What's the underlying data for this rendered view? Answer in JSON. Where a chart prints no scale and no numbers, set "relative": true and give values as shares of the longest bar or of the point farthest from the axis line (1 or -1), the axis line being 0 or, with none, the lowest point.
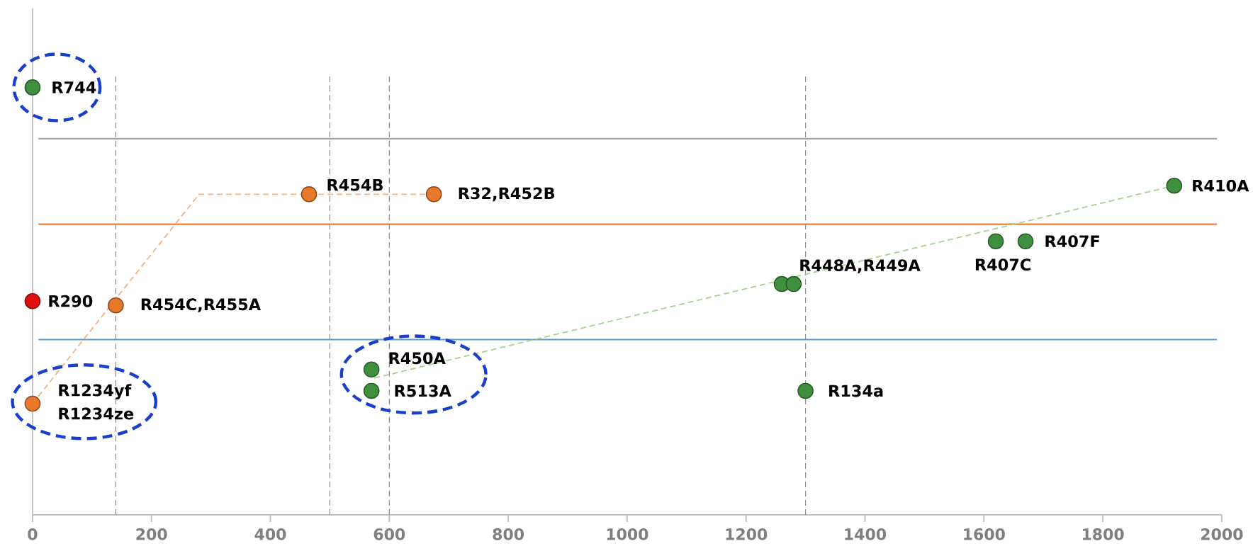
{
  "chart_data": {
    "type": "scatter",
    "relative": true,
    "xlim": [
      0,
      2000
    ],
    "xticks": [
      0,
      200,
      400,
      600,
      800,
      1000,
      1200,
      1400,
      1600,
      1800,
      2000
    ],
    "tick_labels": "x",
    "marker": "circle",
    "series": [
      {
        "color": "#3f8f3f",
        "x": [
          0,
          570,
          570,
          1260,
          1280,
          1300,
          1620,
          1670,
          1920
        ],
        "values": [
          1.0,
          0.34,
          0.29,
          0.54,
          0.54,
          0.29,
          0.64,
          0.64,
          0.77
        ]
      },
      {
        "color": "#e8782a",
        "x": [
          0,
          140,
          465,
          675
        ],
        "values": [
          0.26,
          0.49,
          0.75,
          0.75
        ]
      },
      {
        "color": "#e01010",
        "x": [
          0
        ],
        "values": [
          0.5
        ]
      },
      {
        "type": "line",
        "color": "#f4b183",
        "line_style": "dashed",
        "marker": "none",
        "x": [
          0,
          280,
          675
        ],
        "values": [
          0.26,
          0.75,
          0.75
        ]
      },
      {
        "type": "line",
        "color": "#a9d18e",
        "line_style": "dashed",
        "marker": "none",
        "x": [
          575,
          1920
        ],
        "values": [
          0.32,
          0.77
        ]
      }
    ],
    "ref_lines": [
      {
        "axis": "y",
        "value": 0.88,
        "color": "#a6a6a6",
        "line_style": "solid"
      },
      {
        "axis": "y",
        "value": 0.68,
        "color": "#ed7d31",
        "line_style": "solid"
      },
      {
        "axis": "y",
        "value": 0.41,
        "color": "#5b9bd5",
        "line_style": "solid"
      },
      {
        "axis": "x",
        "value": 140,
        "color": "#8c8c8c",
        "line_style": "dashed"
      },
      {
        "axis": "x",
        "value": 500,
        "color": "#8c8c8c",
        "line_style": "dashed"
      },
      {
        "axis": "x",
        "value": 600,
        "color": "#8c8c8c",
        "line_style": "dashed"
      },
      {
        "axis": "x",
        "value": 1300,
        "color": "#8c8c8c",
        "line_style": "dashed"
      }
    ],
    "annotations": [
      {
        "text": "R744",
        "x": 0,
        "y": 1.0
      },
      {
        "text": "R454B",
        "x": 465,
        "y": 0.75
      },
      {
        "text": "R32,R452B",
        "x": 675,
        "y": 0.75
      },
      {
        "text": "R290",
        "x": 0,
        "y": 0.5
      },
      {
        "text": "R454C,R455A",
        "x": 140,
        "y": 0.49
      },
      {
        "text": "R448A,R449A",
        "x": 1280,
        "y": 0.54
      },
      {
        "text": "R407C",
        "x": 1620,
        "y": 0.64
      },
      {
        "text": "R407F",
        "x": 1670,
        "y": 0.64
      },
      {
        "text": "R410A",
        "x": 1920,
        "y": 0.77
      },
      {
        "text": "R450A",
        "x": 570,
        "y": 0.34
      },
      {
        "text": "R513A",
        "x": 570,
        "y": 0.29
      },
      {
        "text": "R134a",
        "x": 1300,
        "y": 0.29
      },
      {
        "text": "R1234yf",
        "x": 0,
        "y": 0.26
      },
      {
        "text": "R1234ze",
        "x": 0,
        "y": 0.26
      }
    ]
  }
}
